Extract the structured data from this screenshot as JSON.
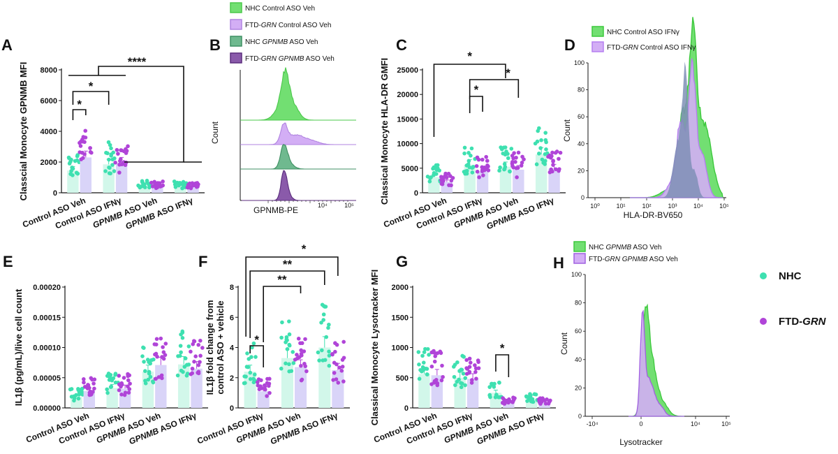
{
  "colors": {
    "nhc": "#3ee0b0",
    "ftd": "#b044d8",
    "nhc_bar": "#d2f7ea",
    "ftd_bar": "#d9d4f8",
    "flow_nhc": "#72df72",
    "flow_ftd": "#d3aef5",
    "flow_nhc_gpnmb": "#6fb98f",
    "flow_ftd_gpnmb": "#8a5aaa",
    "flow_overlap": "#7f8fb6"
  },
  "legend": {
    "nhc": "NHC",
    "ftd": "FTD-",
    "ftd_gene": "GRN"
  },
  "chart_data": [
    {
      "panel": "A",
      "type": "bar",
      "ylabel": "Classcial Monocyte GPNMB MFI",
      "ylim": [
        0,
        8000
      ],
      "yticks": [
        "0",
        "2000",
        "4000",
        "6000",
        "8000"
      ],
      "categories": [
        {
          "pre": "",
          "it": "",
          "post": "Control ASO Veh"
        },
        {
          "pre": "",
          "it": "",
          "post": "Control ASO IFNγ"
        },
        {
          "pre": "",
          "it": "GPNMB",
          "post": " ASO Veh"
        },
        {
          "pre": "",
          "it": "GPNMB",
          "post": " ASO IFNγ"
        }
      ],
      "series": [
        {
          "name": "NHC",
          "values": [
            1450,
            1850,
            450,
            420
          ]
        },
        {
          "name": "FTD-GRN",
          "values": [
            2300,
            1950,
            430,
            400
          ]
        }
      ],
      "sig": [
        "*",
        "*",
        "****"
      ]
    },
    {
      "panel": "C",
      "type": "bar",
      "ylabel": "Classical Monocyte HLA-DR GMFI",
      "ylim": [
        0,
        25000
      ],
      "yticks": [
        "0",
        "5000",
        "10000",
        "15000",
        "20000",
        "25000"
      ],
      "categories": [
        {
          "pre": "",
          "it": "",
          "post": "Control ASO Veh"
        },
        {
          "pre": "",
          "it": "",
          "post": "Control ASO IFNγ"
        },
        {
          "pre": "",
          "it": "GPNMB",
          "post": " ASO Veh"
        },
        {
          "pre": "",
          "it": "GPNMB",
          "post": " ASO IFNγ"
        }
      ],
      "series": [
        {
          "name": "NHC",
          "values": [
            3200,
            5700,
            5300,
            7800
          ]
        },
        {
          "name": "FTD-GRN",
          "values": [
            2200,
            4300,
            4700,
            4900
          ]
        }
      ],
      "sig": [
        "*",
        "*",
        "*"
      ]
    },
    {
      "panel": "E",
      "type": "bar",
      "ylabel": "IL1β (pg/mL)/live cell count",
      "ylim": [
        0,
        0.0002
      ],
      "yticks": [
        "0.00000",
        "0.00005",
        "0.00010",
        "0.00015",
        "0.00020"
      ],
      "categories": [
        {
          "pre": "",
          "it": "",
          "post": "Control ASO Veh"
        },
        {
          "pre": "",
          "it": "",
          "post": "Control ASO IFNγ"
        },
        {
          "pre": "",
          "it": "GPNMB",
          "post": " ASO Veh"
        },
        {
          "pre": "",
          "it": "GPNMB",
          "post": " ASO IFNγ"
        }
      ],
      "series": [
        {
          "name": "NHC",
          "values": [
            1.8e-05,
            3.3e-05,
            6e-05,
            7.2e-05
          ]
        },
        {
          "name": "FTD-GRN",
          "values": [
            2.8e-05,
            3.2e-05,
            7.1e-05,
            6.5e-05
          ]
        }
      ],
      "sig": []
    },
    {
      "panel": "F",
      "type": "bar",
      "ylabel": "IL1β fold change from control ASO + vehicle",
      "ylim": [
        0,
        8
      ],
      "yticks": [
        "0",
        "2",
        "4",
        "6",
        "8"
      ],
      "categories": [
        {
          "pre": "",
          "it": "",
          "post": "Control ASO IFNγ"
        },
        {
          "pre": "",
          "it": "GPNMB",
          "post": " ASO Veh"
        },
        {
          "pre": "",
          "it": "GPNMB",
          "post": " ASO IFNγ"
        }
      ],
      "series": [
        {
          "name": "NHC",
          "values": [
            2.4,
            3.3,
            4.0
          ]
        },
        {
          "name": "FTD-GRN",
          "values": [
            1.1,
            2.7,
            2.5
          ]
        }
      ],
      "sig": [
        "*",
        "**",
        "**",
        "*"
      ]
    },
    {
      "panel": "G",
      "type": "bar",
      "ylabel": "Classical Monocyte Lysotracker MFI",
      "ylim": [
        0,
        2000
      ],
      "yticks": [
        "0",
        "500",
        "1000",
        "1500",
        "2000"
      ],
      "categories": [
        {
          "pre": "",
          "it": "",
          "post": "Control ASO Veh"
        },
        {
          "pre": "",
          "it": "",
          "post": "Control ASO IFNγ"
        },
        {
          "pre": "",
          "it": "GPNMB",
          "post": " ASO Veh"
        },
        {
          "pre": "",
          "it": "GPNMB",
          "post": " ASO IFNγ"
        }
      ],
      "series": [
        {
          "name": "NHC",
          "values": [
            560,
            500,
            250,
            130
          ]
        },
        {
          "name": "FTD-GRN",
          "values": [
            540,
            480,
            100,
            90
          ]
        }
      ],
      "sig": [
        "*"
      ]
    },
    {
      "panel": "B",
      "type": "area",
      "xlabel": "GPNMB-PE",
      "ylabel": "Count",
      "xticks": [
        "10⁴",
        "10⁵"
      ],
      "legend": [
        {
          "pre": "NHC Control ASO Veh",
          "it": "",
          "post": ""
        },
        {
          "pre": "FTD-",
          "it": "GRN",
          "post": " Control ASO Veh"
        },
        {
          "pre": "NHC ",
          "it": "GPNMB",
          "post": " ASO Veh"
        },
        {
          "pre": "FTD-",
          "it": "GRN GPNMB",
          "post": " ASO Veh"
        }
      ]
    },
    {
      "panel": "D",
      "type": "area",
      "xlabel": "HLA-DR-BV650",
      "ylabel": "Count",
      "ylim": [
        0,
        100
      ],
      "yticks": [
        "0",
        "20",
        "40",
        "60",
        "80",
        "100"
      ],
      "xticks": [
        "10⁰",
        "10¹",
        "10²",
        "10³",
        "10⁴",
        "10⁵"
      ],
      "legend": [
        {
          "pre": "NHC Control ASO IFNγ",
          "it": "",
          "post": ""
        },
        {
          "pre": "FTD-",
          "it": "GRN",
          "post": " Control ASO IFNγ"
        }
      ]
    },
    {
      "panel": "H",
      "type": "area",
      "xlabel": "Lysotracker",
      "ylabel": "Count",
      "ylim": [
        0,
        100
      ],
      "yticks": [
        "0",
        "20",
        "40",
        "60",
        "80",
        "100"
      ],
      "xticks": [
        "-10⁴",
        "0",
        "10⁴",
        "10⁵"
      ],
      "legend": [
        {
          "pre": "NHC  ",
          "it": "GPNMB",
          "post": " ASO Veh"
        },
        {
          "pre": "FTD-",
          "it": "GRN GPNMB",
          "post": " ASO Veh"
        }
      ]
    }
  ]
}
